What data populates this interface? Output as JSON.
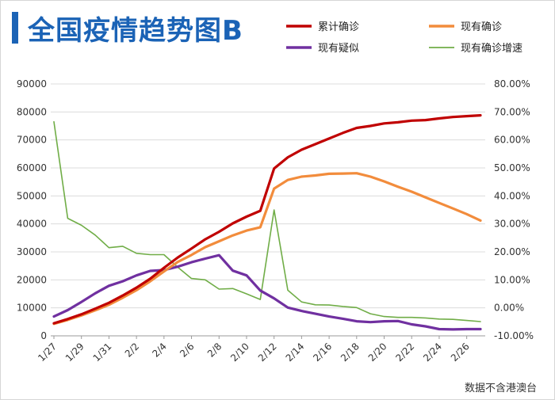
{
  "title": "全国疫情趋势图B",
  "source_note": "数据不含港澳台",
  "chart_data": {
    "type": "line",
    "title": "全国疫情趋势图B",
    "x": [
      "1/27",
      "1/28",
      "1/29",
      "1/30",
      "1/31",
      "2/1",
      "2/2",
      "2/3",
      "2/4",
      "2/5",
      "2/6",
      "2/7",
      "2/8",
      "2/9",
      "2/10",
      "2/11",
      "2/12",
      "2/13",
      "2/14",
      "2/15",
      "2/16",
      "2/17",
      "2/18",
      "2/19",
      "2/20",
      "2/21",
      "2/22",
      "2/23",
      "2/24",
      "2/25",
      "2/26",
      "2/27"
    ],
    "x_tick_labels": [
      "1/27",
      "1/29",
      "1/31",
      "2/2",
      "2/4",
      "2/6",
      "2/8",
      "2/10",
      "2/12",
      "2/14",
      "2/16",
      "2/18",
      "2/20",
      "2/22",
      "2/24",
      "2/26"
    ],
    "left_axis": {
      "ylim": [
        0,
        90000
      ],
      "ticks": [
        "0",
        "10000",
        "20000",
        "30000",
        "40000",
        "50000",
        "60000",
        "70000",
        "80000",
        "90000"
      ]
    },
    "right_axis": {
      "ylim": [
        -0.1,
        0.8
      ],
      "ticks": [
        "-10.00%",
        "0.00%",
        "10.00%",
        "20.00%",
        "30.00%",
        "40.00%",
        "50.00%",
        "60.00%",
        "70.00%",
        "80.00%"
      ]
    },
    "legend_position": "top-right",
    "series": [
      {
        "name": "累计确诊",
        "color": "#c00000",
        "width": 3.2,
        "axis": "left",
        "values": [
          4500,
          6000,
          7700,
          9700,
          11800,
          14400,
          17200,
          20400,
          24300,
          28000,
          31200,
          34500,
          37200,
          40200,
          42600,
          44700,
          59800,
          63800,
          66500,
          68500,
          70500,
          72500,
          74300,
          75000,
          75900,
          76300,
          76900,
          77100,
          77700,
          78200,
          78500,
          78800
        ]
      },
      {
        "name": "现有确诊",
        "color": "#f28c3c",
        "width": 3.2,
        "axis": "left",
        "values": [
          4300,
          5700,
          7300,
          9100,
          11100,
          13600,
          16300,
          19500,
          23000,
          26400,
          28900,
          31700,
          33800,
          35900,
          37600,
          38800,
          52600,
          55700,
          56900,
          57300,
          57900,
          58000,
          58100,
          56900,
          55200,
          53300,
          51500,
          49500,
          47500,
          45500,
          43500,
          41200
        ]
      },
      {
        "name": "现有疑似",
        "color": "#7030a0",
        "width": 3.2,
        "axis": "left",
        "values": [
          6900,
          9200,
          12100,
          15200,
          17900,
          19500,
          21600,
          23200,
          23500,
          24700,
          26300,
          27600,
          28800,
          23300,
          21600,
          16200,
          13400,
          10100,
          8900,
          7900,
          6900,
          6100,
          5200,
          4900,
          5200,
          5300,
          4100,
          3400,
          2400,
          2300,
          2400,
          2400
        ]
      },
      {
        "name": "现有确诊增速",
        "color": "#70ad47",
        "width": 1.6,
        "axis": "right",
        "values": [
          0.665,
          0.32,
          0.295,
          0.26,
          0.215,
          0.22,
          0.195,
          0.19,
          0.19,
          0.145,
          0.105,
          0.1,
          0.067,
          0.069,
          0.05,
          0.03,
          0.35,
          0.063,
          0.021,
          0.011,
          0.01,
          0.005,
          0.001,
          -0.021,
          -0.031,
          -0.034,
          -0.034,
          -0.036,
          -0.04,
          -0.041,
          -0.045,
          -0.049
        ]
      }
    ]
  }
}
